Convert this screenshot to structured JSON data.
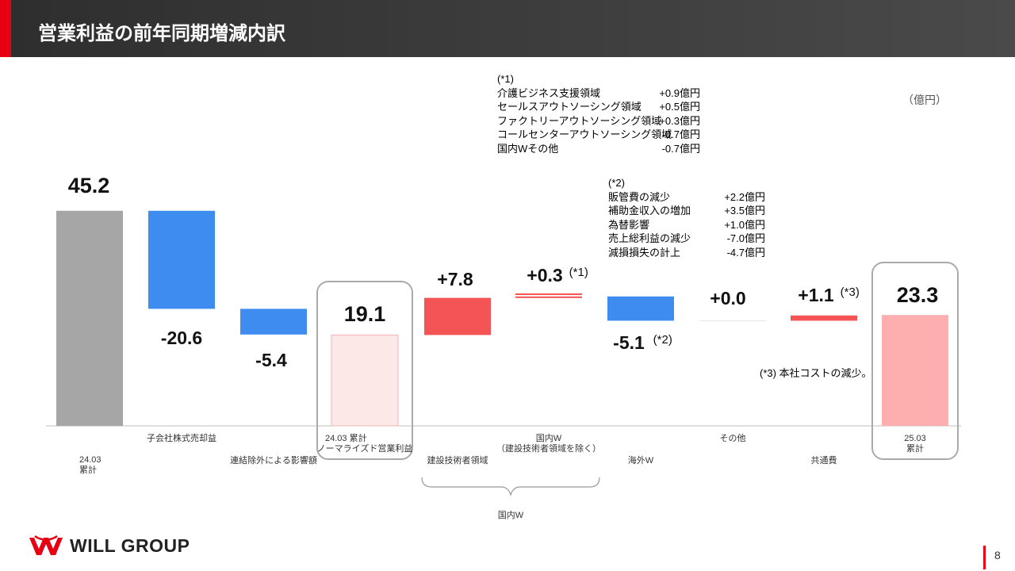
{
  "header": {
    "title": "営業利益の前年同期増減内訳"
  },
  "unit": "（億円）",
  "notes": {
    "n1": {
      "title": "(*1)",
      "rows": [
        {
          "label": "介護ビジネス支援領域",
          "value": "+0.9億円"
        },
        {
          "label": "セールスアウトソーシング領域",
          "value": "+0.5億円"
        },
        {
          "label": "ファクトリーアウトソーシング領域",
          "value": "+0.3億円"
        },
        {
          "label": "コールセンターアウトソーシング領域",
          "value": "-0.7億円"
        },
        {
          "label": "国内Wその他",
          "value": "-0.7億円"
        }
      ]
    },
    "n2": {
      "title": "(*2)",
      "rows": [
        {
          "label": "販管費の減少",
          "value": "+2.2億円"
        },
        {
          "label": "補助金収入の増加",
          "value": "+3.5億円"
        },
        {
          "label": "為替影響",
          "value": "+1.0億円"
        },
        {
          "label": "売上総利益の減少",
          "value": "-7.0億円"
        },
        {
          "label": "減損損失の計上",
          "value": "-4.7億円"
        }
      ]
    },
    "n3": "(*3) 本社コストの減少。"
  },
  "brace_label": "国内W",
  "logo_text": "WILL GROUP",
  "page_number": "8",
  "colors": {
    "total": "#a6a6a6",
    "negative": "#3f8cf0",
    "positive": "#f45455",
    "subtotal_fill": "#fde8e8",
    "subtotal_stroke": "#f4b6b6",
    "final": "#fdafb0",
    "highlight_box": "#aaaaaa"
  },
  "chart_data": {
    "type": "waterfall",
    "ylim": [
      0,
      52
    ],
    "bars": [
      {
        "key": "b0",
        "kind": "total",
        "start": 0,
        "end": 45.2,
        "label": "45.2",
        "note": ""
      },
      {
        "key": "b1",
        "kind": "negative",
        "start": 45.2,
        "end": 24.6,
        "label": "-20.6",
        "note": ""
      },
      {
        "key": "b2",
        "kind": "negative",
        "start": 24.6,
        "end": 19.2,
        "label": "-5.4",
        "note": ""
      },
      {
        "key": "b3",
        "kind": "subtotal",
        "start": 0,
        "end": 19.1,
        "label": "19.1",
        "note": ""
      },
      {
        "key": "b4",
        "kind": "positive",
        "start": 19.1,
        "end": 26.9,
        "label": "+7.8",
        "note": ""
      },
      {
        "key": "b5",
        "kind": "positive",
        "start": 26.9,
        "end": 27.2,
        "label": "+0.3",
        "note": "(*1)"
      },
      {
        "key": "b6",
        "kind": "negative",
        "start": 27.2,
        "end": 22.1,
        "label": "-5.1",
        "note": "(*2)"
      },
      {
        "key": "b7",
        "kind": "zero",
        "start": 22.1,
        "end": 22.1,
        "label": "+0.0",
        "note": ""
      },
      {
        "key": "b8",
        "kind": "positive",
        "start": 22.1,
        "end": 23.2,
        "label": "+1.1",
        "note": "(*3)"
      },
      {
        "key": "b9",
        "kind": "final",
        "start": 0,
        "end": 23.3,
        "label": "23.3",
        "note": ""
      }
    ],
    "categories": [
      "24.03\n累計",
      "子会社株式売却益",
      "連結除外による影響額",
      "24.03 累計\nノーマライズド営業利益",
      "建設技術者領域",
      "国内W\n（建設技術者領域を除く）",
      "海外W",
      "その他",
      "共通費",
      "25.03\n累計"
    ]
  }
}
